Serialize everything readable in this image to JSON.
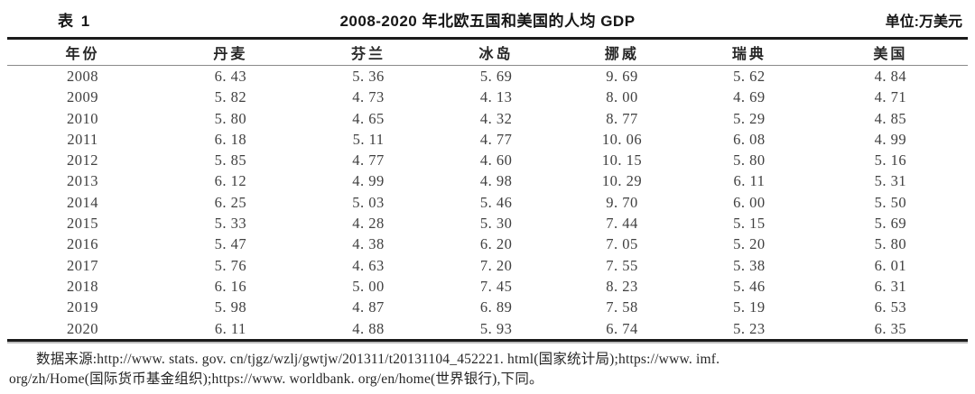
{
  "page": {
    "table_label": "表 1",
    "title": "2008-2020 年北欧五国和美国的人均 GDP",
    "unit": "单位:万美元"
  },
  "table": {
    "columns": [
      "年份",
      "丹麦",
      "芬兰",
      "冰岛",
      "挪威",
      "瑞典",
      "美国"
    ],
    "rows": [
      [
        "2008",
        "6.43",
        "5.36",
        "5.69",
        "9.69",
        "5.62",
        "4.84"
      ],
      [
        "2009",
        "5.82",
        "4.73",
        "4.13",
        "8.00",
        "4.69",
        "4.71"
      ],
      [
        "2010",
        "5.80",
        "4.65",
        "4.32",
        "8.77",
        "5.29",
        "4.85"
      ],
      [
        "2011",
        "6.18",
        "5.11",
        "4.77",
        "10.06",
        "6.08",
        "4.99"
      ],
      [
        "2012",
        "5.85",
        "4.77",
        "4.60",
        "10.15",
        "5.80",
        "5.16"
      ],
      [
        "2013",
        "6.12",
        "4.99",
        "4.98",
        "10.29",
        "6.11",
        "5.31"
      ],
      [
        "2014",
        "6.25",
        "5.03",
        "5.46",
        "9.70",
        "6.00",
        "5.50"
      ],
      [
        "2015",
        "5.33",
        "4.28",
        "5.30",
        "7.44",
        "5.15",
        "5.69"
      ],
      [
        "2016",
        "5.47",
        "4.38",
        "6.20",
        "7.05",
        "5.20",
        "5.80"
      ],
      [
        "2017",
        "5.76",
        "4.63",
        "7.20",
        "7.55",
        "5.38",
        "6.01"
      ],
      [
        "2018",
        "6.16",
        "5.00",
        "7.45",
        "8.23",
        "5.46",
        "6.31"
      ],
      [
        "2019",
        "5.98",
        "4.87",
        "6.89",
        "7.58",
        "5.19",
        "6.53"
      ],
      [
        "2020",
        "6.11",
        "4.88",
        "5.93",
        "6.74",
        "5.23",
        "6.35"
      ]
    ]
  },
  "footnote": {
    "line1": "数据来源:http://www. stats. gov. cn/tjgz/wzlj/gwtjw/201311/t20131104_452221. html(国家统计局);https://www. imf.",
    "line2": "org/zh/Home(国际货币基金组织);https://www. worldbank. org/en/home(世界银行),下同。"
  },
  "chart_data": {
    "type": "table",
    "title": "2008-2020 年北欧五国和美国的人均 GDP",
    "unit": "万美元",
    "x": [
      2008,
      2009,
      2010,
      2011,
      2012,
      2013,
      2014,
      2015,
      2016,
      2017,
      2018,
      2019,
      2020
    ],
    "series": [
      {
        "name": "丹麦",
        "values": [
          6.43,
          5.82,
          5.8,
          6.18,
          5.85,
          6.12,
          6.25,
          5.33,
          5.47,
          5.76,
          6.16,
          5.98,
          6.11
        ]
      },
      {
        "name": "芬兰",
        "values": [
          5.36,
          4.73,
          4.65,
          5.11,
          4.77,
          4.99,
          5.03,
          4.28,
          4.38,
          4.63,
          5.0,
          4.87,
          4.88
        ]
      },
      {
        "name": "冰岛",
        "values": [
          5.69,
          4.13,
          4.32,
          4.77,
          4.6,
          4.98,
          5.46,
          5.3,
          6.2,
          7.2,
          7.45,
          6.89,
          5.93
        ]
      },
      {
        "name": "挪威",
        "values": [
          9.69,
          8.0,
          8.77,
          10.06,
          10.15,
          10.29,
          9.7,
          7.44,
          7.05,
          7.55,
          8.23,
          7.58,
          6.74
        ]
      },
      {
        "name": "瑞典",
        "values": [
          5.62,
          4.69,
          5.29,
          6.08,
          5.8,
          6.11,
          6.0,
          5.15,
          5.2,
          5.38,
          5.46,
          5.19,
          5.23
        ]
      },
      {
        "name": "美国",
        "values": [
          4.84,
          4.71,
          4.85,
          4.99,
          5.16,
          5.31,
          5.5,
          5.69,
          5.8,
          6.01,
          6.31,
          6.53,
          6.35
        ]
      }
    ]
  }
}
